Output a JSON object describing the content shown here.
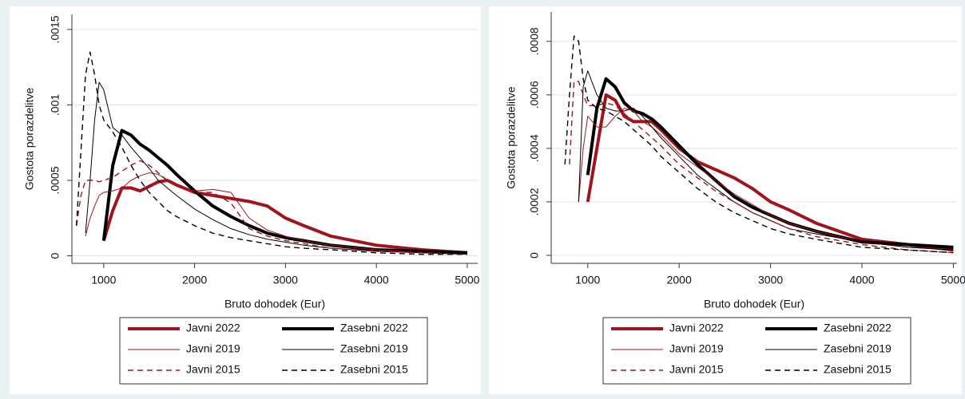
{
  "chart_data": [
    {
      "type": "line",
      "xlabel": "Bruto dohodek (Eur)",
      "ylabel": "Gostota porazdelitve",
      "xlim": [
        650,
        5115
      ],
      "xticks": [
        1000,
        2000,
        3000,
        4000,
        5000
      ],
      "ylim": [
        -5e-05,
        0.0016
      ],
      "yticks": [
        0,
        {
          "value": 0.0005,
          "label": ".0005"
        },
        {
          "value": 0.001,
          "label": ".001"
        },
        {
          "value": 0.0015,
          "label": ".0015"
        }
      ],
      "grid": true,
      "legend": "bottom",
      "x": [
        700,
        750,
        800,
        850,
        900,
        950,
        1000,
        1100,
        1200,
        1300,
        1400,
        1500,
        1600,
        1700,
        1800,
        2000,
        2200,
        2400,
        2600,
        2800,
        3000,
        3200,
        3500,
        4000,
        4500,
        5000
      ],
      "series": [
        {
          "name": "Javni 2022",
          "color": "#a0141e",
          "width": 4,
          "dash": false,
          "values": [
            null,
            null,
            null,
            null,
            null,
            null,
            0.0001,
            0.0003,
            0.00045,
            0.00045,
            0.00043,
            0.00046,
            0.00049,
            0.0005,
            0.00047,
            0.00042,
            0.0004,
            0.00038,
            0.00036,
            0.00033,
            0.00025,
            0.0002,
            0.00013,
            7e-05,
            4e-05,
            2e-05
          ]
        },
        {
          "name": "Zasebni 2022",
          "color": "#000000",
          "width": 4,
          "dash": false,
          "values": [
            null,
            null,
            null,
            null,
            null,
            null,
            0.0001,
            0.0006,
            0.00083,
            0.0008,
            0.00074,
            0.0007,
            0.00065,
            0.0006,
            0.00054,
            0.00043,
            0.00033,
            0.00026,
            0.0002,
            0.00015,
            0.00012,
            0.0001,
            7e-05,
            4e-05,
            3e-05,
            2e-05
          ]
        },
        {
          "name": "Javni 2019",
          "color": "#a0141e",
          "width": 1,
          "dash": false,
          "values": [
            null,
            null,
            0.00013,
            0.00025,
            0.00033,
            0.0004,
            0.00042,
            0.00043,
            0.00045,
            0.0005,
            0.00053,
            0.00055,
            0.00054,
            0.0005,
            0.00046,
            0.00043,
            0.00044,
            0.00042,
            0.00025,
            0.00017,
            0.00013,
            0.0001,
            7e-05,
            4e-05,
            2e-05,
            1e-05
          ]
        },
        {
          "name": "Zasebni 2019",
          "color": "#000000",
          "width": 1,
          "dash": false,
          "values": [
            null,
            null,
            0.00015,
            0.0005,
            0.0009,
            0.00115,
            0.0011,
            0.00085,
            0.0008,
            0.00072,
            0.00065,
            0.00058,
            0.0005,
            0.00045,
            0.0004,
            0.00031,
            0.00024,
            0.00018,
            0.00014,
            0.00011,
            9e-05,
            7e-05,
            5e-05,
            3e-05,
            2e-05,
            1e-05
          ]
        },
        {
          "name": "Javni 2015",
          "color": "#a0141e",
          "width": 1.4,
          "dash": true,
          "values": [
            0.0002,
            0.0004,
            0.0005,
            0.0005,
            0.0005,
            0.00049,
            0.0005,
            0.00052,
            0.00056,
            0.0006,
            0.00063,
            0.0006,
            0.00055,
            0.0005,
            0.00046,
            0.00042,
            0.00042,
            0.00035,
            0.00018,
            0.00013,
            0.0001,
            8e-05,
            5e-05,
            3e-05,
            2e-05,
            1e-05
          ]
        },
        {
          "name": "Zasebni 2015",
          "color": "#000000",
          "width": 1.4,
          "dash": true,
          "values": [
            0.0002,
            0.0007,
            0.0012,
            0.00135,
            0.0012,
            0.001,
            0.0009,
            0.00082,
            0.00072,
            0.0006,
            0.0005,
            0.00042,
            0.00036,
            0.0003,
            0.00026,
            0.0002,
            0.00015,
            0.00012,
            0.0001,
            8e-05,
            6e-05,
            5e-05,
            4e-05,
            2e-05,
            1e-05,
            1e-05
          ]
        }
      ]
    },
    {
      "type": "line",
      "xlabel": "Bruto dohodek (Eur)",
      "ylabel": "Gostota porazdelitve",
      "xlim": [
        600,
        5040
      ],
      "xticks": [
        1000,
        2000,
        3000,
        4000,
        5000
      ],
      "ylim": [
        -3e-05,
        0.00091
      ],
      "yticks": [
        0,
        {
          "value": 0.0002,
          "label": ".0002"
        },
        {
          "value": 0.0004,
          "label": ".0004"
        },
        {
          "value": 0.0006,
          "label": ".0006"
        },
        {
          "value": 0.0008,
          "label": ".0008"
        }
      ],
      "grid": true,
      "legend": "bottom",
      "x": [
        700,
        750,
        800,
        850,
        900,
        950,
        1000,
        1100,
        1200,
        1300,
        1400,
        1500,
        1600,
        1700,
        1800,
        2000,
        2200,
        2400,
        2600,
        2800,
        3000,
        3200,
        3500,
        4000,
        4500,
        5000
      ],
      "series": [
        {
          "name": "Javni 2022",
          "color": "#a0141e",
          "width": 4,
          "dash": false,
          "values": [
            null,
            null,
            null,
            null,
            null,
            null,
            0.0002,
            0.0004,
            0.0006,
            0.00058,
            0.00052,
            0.0005,
            0.0005,
            0.0005,
            0.00047,
            0.0004,
            0.00035,
            0.00032,
            0.00029,
            0.00025,
            0.0002,
            0.00017,
            0.00012,
            6e-05,
            4e-05,
            2e-05
          ]
        },
        {
          "name": "Zasebni 2022",
          "color": "#000000",
          "width": 4,
          "dash": false,
          "values": [
            null,
            null,
            null,
            null,
            null,
            null,
            0.0003,
            0.00055,
            0.00066,
            0.00063,
            0.00057,
            0.00054,
            0.00053,
            0.00051,
            0.00048,
            0.00041,
            0.00034,
            0.00028,
            0.00022,
            0.00018,
            0.00015,
            0.00012,
            9e-05,
            5e-05,
            4e-05,
            3e-05
          ]
        },
        {
          "name": "Javni 2019",
          "color": "#a0141e",
          "width": 1,
          "dash": false,
          "values": [
            null,
            null,
            null,
            null,
            0.0002,
            0.0004,
            0.00052,
            0.00048,
            0.00048,
            0.00052,
            0.00055,
            0.00054,
            0.0005,
            0.00048,
            0.00045,
            0.00038,
            0.00033,
            0.00028,
            0.00023,
            0.00019,
            0.00015,
            0.00012,
            9e-05,
            5e-05,
            3e-05,
            2e-05
          ]
        },
        {
          "name": "Zasebni 2019",
          "color": "#000000",
          "width": 1,
          "dash": false,
          "values": [
            null,
            null,
            null,
            null,
            0.0002,
            0.00063,
            0.00069,
            0.0006,
            0.00055,
            0.00054,
            0.00054,
            0.00055,
            0.00052,
            0.00048,
            0.00044,
            0.00037,
            0.0003,
            0.00025,
            0.0002,
            0.00016,
            0.00013,
            0.0001,
            8e-05,
            5e-05,
            3e-05,
            2e-05
          ]
        },
        {
          "name": "Javni 2015",
          "color": "#a0141e",
          "width": 1.4,
          "dash": true,
          "values": [
            null,
            null,
            0.00034,
            0.00065,
            0.00065,
            0.0006,
            0.00056,
            0.00056,
            0.00057,
            0.00056,
            0.00053,
            0.0005,
            0.00047,
            0.00044,
            0.00041,
            0.00034,
            0.00029,
            0.00024,
            0.0002,
            0.00016,
            0.00013,
            0.0001,
            7e-05,
            4e-05,
            2e-05,
            1e-05
          ]
        },
        {
          "name": "Zasebni 2015",
          "color": "#000000",
          "width": 1.4,
          "dash": true,
          "values": [
            null,
            0.00034,
            0.0006,
            0.00082,
            0.0008,
            0.00066,
            0.00058,
            0.00055,
            0.00054,
            0.00052,
            0.0005,
            0.00047,
            0.00044,
            0.00041,
            0.00037,
            0.00031,
            0.00025,
            0.0002,
            0.00016,
            0.00013,
            0.0001,
            8e-05,
            6e-05,
            3e-05,
            2e-05,
            1e-05
          ]
        }
      ]
    }
  ]
}
